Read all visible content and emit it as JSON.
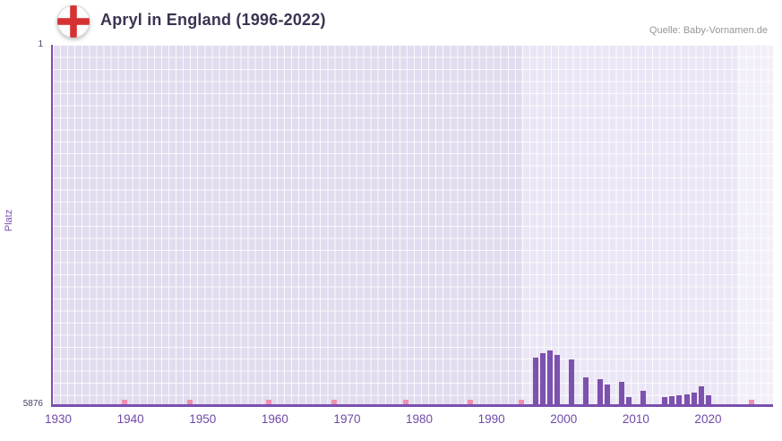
{
  "header": {
    "title": "Apryl in England (1996-2022)",
    "source": "Quelle: Baby-Vornamen.de",
    "flag_icon": "england-flag-icon"
  },
  "chart_data": {
    "type": "bar",
    "title": "Apryl in England (1996-2022)",
    "xlabel": "",
    "ylabel": "Platz",
    "legend": null,
    "grid": true,
    "y_axis": {
      "top_tick": "1",
      "bottom_tick": "5876",
      "min": 1,
      "max": 5876,
      "inverted": true
    },
    "x_axis": {
      "min_year": 1929,
      "max_year": 2029,
      "tick_years": [
        1930,
        1940,
        1950,
        1960,
        1970,
        1980,
        1990,
        2000,
        2010,
        2020
      ]
    },
    "bars": [
      {
        "year": 1996,
        "rank": 5120
      },
      {
        "year": 1997,
        "rank": 5045
      },
      {
        "year": 1998,
        "rank": 5000
      },
      {
        "year": 1999,
        "rank": 5075
      },
      {
        "year": 2001,
        "rank": 5150
      },
      {
        "year": 2003,
        "rank": 5440
      },
      {
        "year": 2005,
        "rank": 5470
      },
      {
        "year": 2006,
        "rank": 5555
      },
      {
        "year": 2008,
        "rank": 5510
      },
      {
        "year": 2009,
        "rank": 5760
      },
      {
        "year": 2011,
        "rank": 5655
      },
      {
        "year": 2014,
        "rank": 5760
      },
      {
        "year": 2015,
        "rank": 5745
      },
      {
        "year": 2016,
        "rank": 5730
      },
      {
        "year": 2017,
        "rank": 5715
      },
      {
        "year": 2018,
        "rank": 5685
      },
      {
        "year": 2019,
        "rank": 5585
      },
      {
        "year": 2020,
        "rank": 5730
      }
    ],
    "no_rank_marker_years": [
      1939,
      1948,
      1959,
      1968,
      1978,
      1987,
      1994,
      2026
    ],
    "bands": [
      {
        "from": 1929,
        "to": 1994,
        "color": "#e2dcef"
      },
      {
        "from": 1994,
        "to": 2024,
        "color": "#ebe6f5"
      },
      {
        "from": 2024,
        "to": 2029,
        "color": "#f2eff9"
      }
    ],
    "colors": {
      "bar": "#7d51ae",
      "no_rank_marker": "#f08fad",
      "axis": "#7a4fae",
      "tick_label": "#6f49a8",
      "grid_line": "#ffffff",
      "flag_cross": "#d63232",
      "title_text": "#3c3352"
    }
  }
}
